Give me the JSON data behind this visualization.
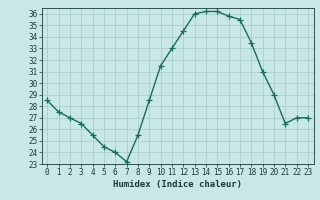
{
  "title": "",
  "xlabel": "Humidex (Indice chaleur)",
  "ylabel": "",
  "x": [
    0,
    1,
    2,
    3,
    4,
    5,
    6,
    7,
    8,
    9,
    10,
    11,
    12,
    13,
    14,
    15,
    16,
    17,
    18,
    19,
    20,
    21,
    22,
    23
  ],
  "y": [
    28.5,
    27.5,
    27.0,
    26.5,
    25.5,
    24.5,
    24.0,
    23.2,
    25.5,
    28.5,
    31.5,
    33.0,
    34.5,
    36.0,
    36.2,
    36.2,
    35.8,
    35.5,
    33.5,
    31.0,
    29.0,
    26.5,
    27.0,
    27.0
  ],
  "line_color": "#1a6b5a",
  "marker": "+",
  "markersize": 4,
  "linewidth": 1.0,
  "bg_color": "#c8e8e8",
  "grid_color": "#aacece",
  "ylim": [
    23,
    36.5
  ],
  "xlim": [
    -0.5,
    23.5
  ],
  "yticks": [
    23,
    24,
    25,
    26,
    27,
    28,
    29,
    30,
    31,
    32,
    33,
    34,
    35,
    36
  ],
  "xticks": [
    0,
    1,
    2,
    3,
    4,
    5,
    6,
    7,
    8,
    9,
    10,
    11,
    12,
    13,
    14,
    15,
    16,
    17,
    18,
    19,
    20,
    21,
    22,
    23
  ],
  "tick_fontsize": 5.5,
  "xlabel_fontsize": 6.5,
  "label_color": "#1a3a3a"
}
